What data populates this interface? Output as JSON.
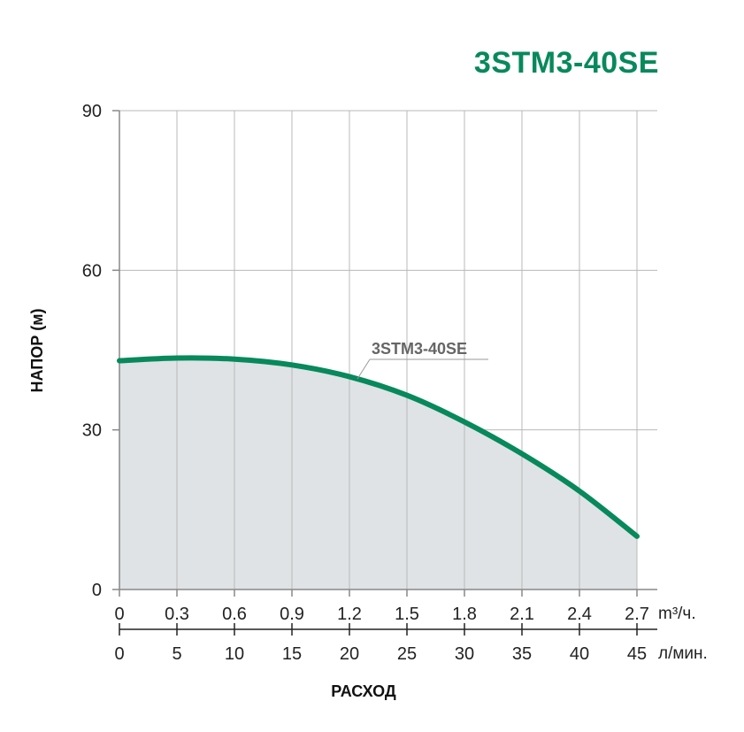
{
  "chart_data": {
    "type": "line",
    "title": "3STM3-40SE",
    "ylabel": "НАПОР (м)",
    "xlabel": "РАСХОД",
    "ylim": [
      0,
      90
    ],
    "yticks": [
      0,
      30,
      60,
      90
    ],
    "xlim": [
      0,
      45
    ],
    "x_axes": [
      {
        "unit": "m³/ч.",
        "ticks": [
          "0",
          "0.3",
          "0.6",
          "0.9",
          "1.2",
          "1.5",
          "1.8",
          "2.1",
          "2.4",
          "2.7"
        ]
      },
      {
        "unit": "л/мин.",
        "ticks": [
          "0",
          "5",
          "10",
          "15",
          "20",
          "25",
          "30",
          "35",
          "40",
          "45"
        ]
      }
    ],
    "grid": true,
    "series": [
      {
        "name": "3STM3-40SE",
        "color": "#07895c",
        "fill": "#dfe3e5",
        "x": [
          0,
          5,
          10,
          15,
          20,
          25,
          30,
          35,
          40,
          45
        ],
        "y": [
          43,
          43.5,
          43.3,
          42.2,
          40.0,
          36.5,
          31.5,
          25.5,
          18.5,
          10.0
        ]
      }
    ]
  }
}
